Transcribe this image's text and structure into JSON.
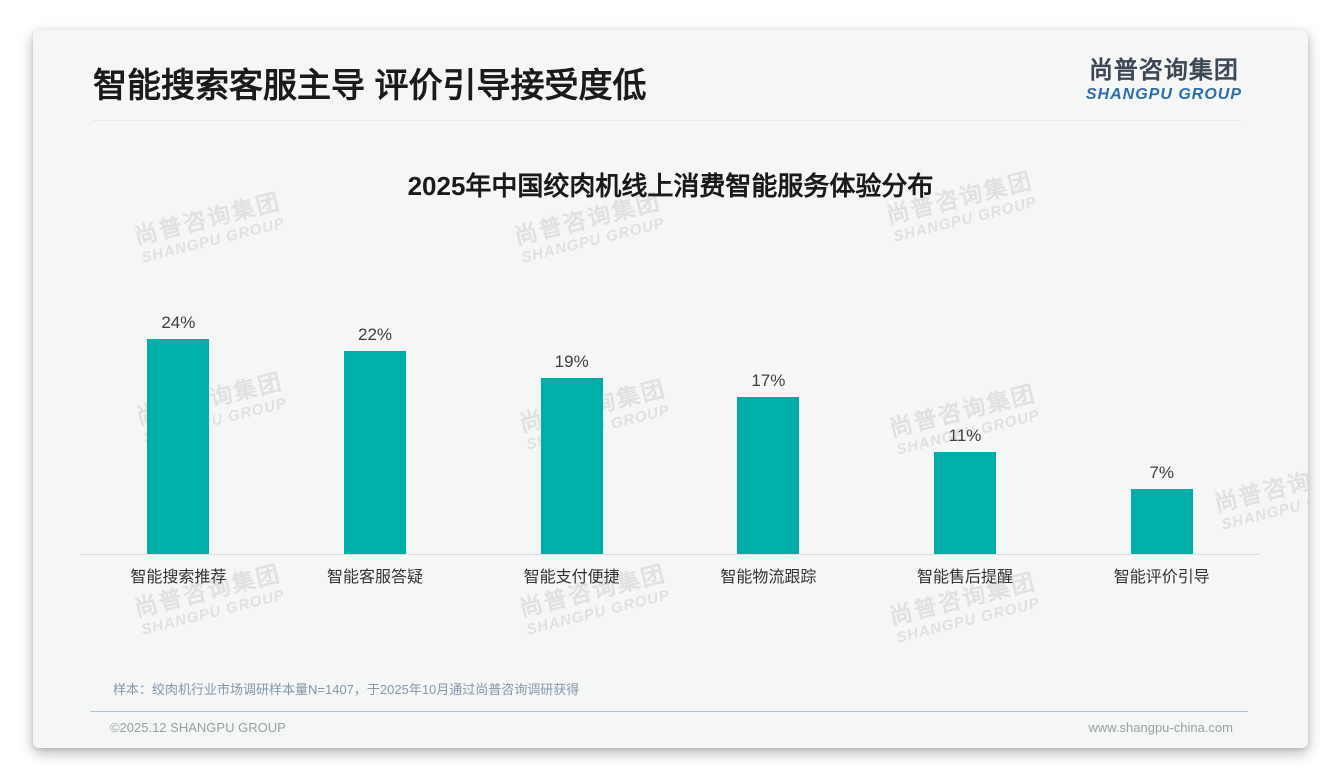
{
  "page": {
    "header": {
      "title": "智能搜索客服主导 评价引导接受度低"
    },
    "logo": {
      "cn": "尚普咨询集团",
      "en": "SHANGPU GROUP"
    },
    "watermark": {
      "line1": "尚普咨询集团",
      "line2": "SHANGPU GROUP"
    },
    "note": "样本：绞肉机行业市场调研样本量N=1407，于2025年10月通过尚普咨询调研获得",
    "footer": {
      "left": "©2025.12 SHANGPU GROUP",
      "right": "www.shangpu-china.com"
    }
  },
  "chart_data": {
    "type": "bar",
    "title": "2025年中国绞肉机线上消费智能服务体验分布",
    "categories": [
      "智能搜索推荐",
      "智能客服答疑",
      "智能支付便捷",
      "智能物流跟踪",
      "智能售后提醒",
      "智能评价引导"
    ],
    "values": [
      24,
      22,
      19,
      17,
      11,
      7
    ],
    "unit": "%",
    "value_labels": [
      "24%",
      "22%",
      "19%",
      "17%",
      "11%",
      "7%"
    ],
    "bar_color": "#00AEA8",
    "xlabel": "",
    "ylabel": "",
    "ylim": [
      0,
      26
    ],
    "grid": false,
    "legend": null
  }
}
